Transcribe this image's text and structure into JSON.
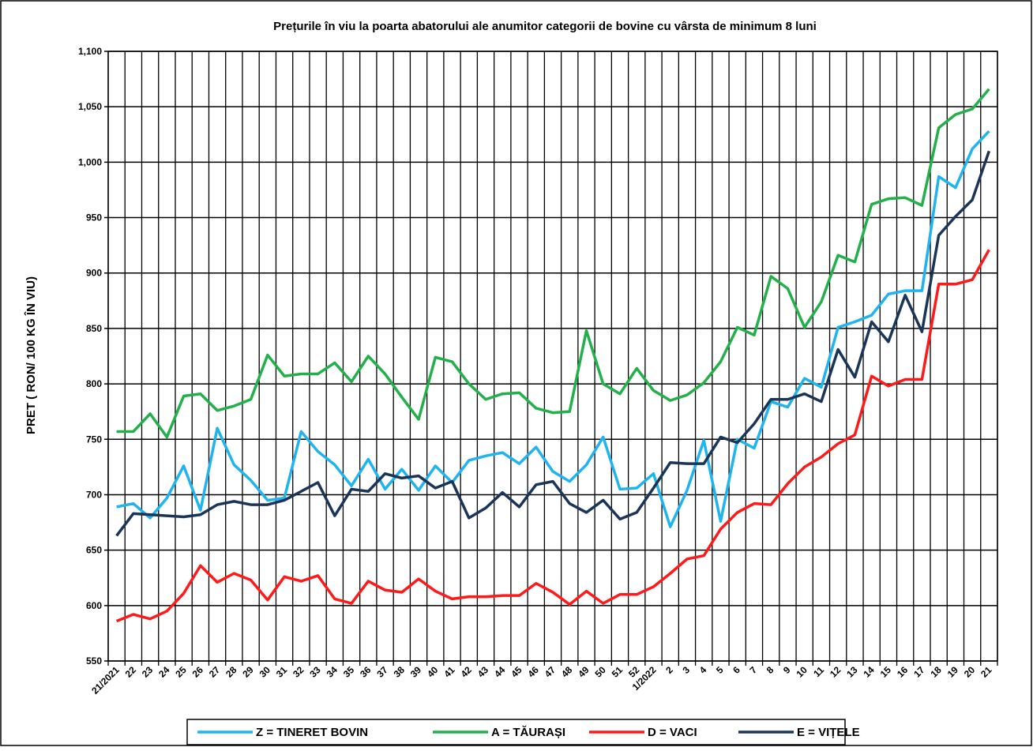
{
  "chart_data": {
    "type": "line",
    "title": "Prețurile în viu la poarta abatorului ale anumitor categorii de  bovine cu vârsta de minimum  8 luni",
    "y_label": "PRET ( RON/ 100 KG ÎN VIU)",
    "categories": [
      "21/2021",
      "22",
      "23",
      "24",
      "25",
      "26",
      "27",
      "28",
      "29",
      "30",
      "31",
      "32",
      "33",
      "34",
      "35",
      "36",
      "37",
      "38",
      "39",
      "40",
      "41",
      "42",
      "43",
      "44",
      "45",
      "46",
      "47",
      "48",
      "49",
      "50",
      "51",
      "52",
      "1/2022",
      "2",
      "3",
      "4",
      "5",
      "6",
      "7",
      "8",
      "9",
      "10",
      "11",
      "12",
      "13",
      "14",
      "15",
      "16",
      "17",
      "18",
      "19",
      "20",
      "21"
    ],
    "series": [
      {
        "name": "Z  = TINERET BOVIN",
        "color": "#1fb4f0",
        "values": [
          689,
          692,
          679,
          697,
          726,
          686,
          760,
          727,
          713,
          695,
          697,
          757,
          739,
          727,
          708,
          732,
          705,
          723,
          704,
          726,
          711,
          731,
          735,
          738,
          728,
          743,
          721,
          712,
          727,
          752,
          705,
          706,
          719,
          671,
          704,
          749,
          676,
          750,
          742,
          784,
          779,
          805,
          797,
          851,
          856,
          862,
          881,
          884,
          884,
          987,
          977,
          1012,
          1028
        ]
      },
      {
        "name": "A = TĂURAȘI",
        "color": "#22b04b",
        "values": [
          757,
          757,
          773,
          752,
          789,
          791,
          776,
          780,
          786,
          826,
          807,
          809,
          809,
          819,
          802,
          825,
          809,
          788,
          768,
          824,
          820,
          800,
          786,
          791,
          792,
          778,
          774,
          775,
          848,
          800,
          791,
          814,
          794,
          785,
          790,
          801,
          820,
          851,
          844,
          897,
          886,
          851,
          874,
          916,
          910,
          962,
          967,
          968,
          961,
          1031,
          1043,
          1048,
          1066
        ]
      },
      {
        "name": "D = VACI",
        "color": "#ff1a1a",
        "values": [
          586,
          592,
          588,
          595,
          611,
          636,
          621,
          629,
          623,
          605,
          626,
          622,
          627,
          606,
          602,
          622,
          614,
          612,
          624,
          613,
          606,
          608,
          608,
          609,
          609,
          620,
          612,
          601,
          613,
          602,
          610,
          610,
          617,
          629,
          642,
          645,
          669,
          684,
          692,
          691,
          710,
          725,
          734,
          746,
          754,
          807,
          798,
          804,
          804,
          890,
          890,
          894,
          921
        ]
      },
      {
        "name": "E = VIȚELE",
        "color": "#1b3558",
        "values": [
          663,
          683,
          682,
          681,
          680,
          682,
          691,
          694,
          691,
          691,
          695,
          703,
          711,
          681,
          705,
          703,
          719,
          715,
          717,
          706,
          712,
          679,
          688,
          702,
          689,
          709,
          712,
          692,
          684,
          695,
          678,
          684,
          706,
          729,
          728,
          728,
          752,
          747,
          764,
          786,
          786,
          791,
          784,
          831,
          806,
          856,
          838,
          880,
          847,
          934,
          951,
          966,
          1010
        ]
      }
    ],
    "ylim": [
      550,
      1100
    ],
    "yticks": [
      550,
      600,
      650,
      700,
      750,
      800,
      850,
      900,
      950,
      {
        "value": 1000,
        "label": "1,000"
      },
      {
        "value": 1050,
        "label": "1,050"
      },
      {
        "value": 1100,
        "label": "1,100"
      }
    ],
    "grid": true
  }
}
